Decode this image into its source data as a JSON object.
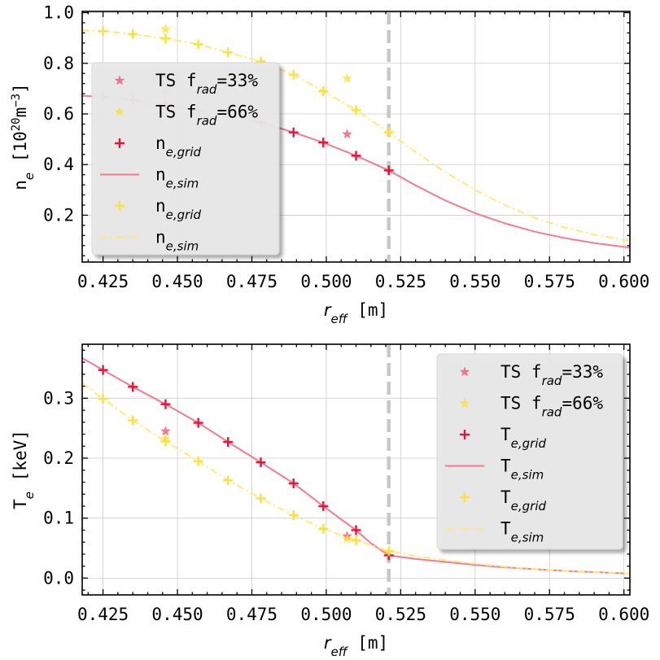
{
  "chart_data": [
    {
      "type": "scatter",
      "xlabel": "r_eff [m]",
      "xlabel_parts": {
        "main": "r",
        "sub": "eff",
        "unit": " [m]"
      },
      "ylabel_parts": {
        "main": "n",
        "sub": "e",
        "unit": " [10",
        "sup": "20",
        "unit2": "m",
        "sup2": "−3",
        "close": "]"
      },
      "xlim": [
        0.418,
        0.602
      ],
      "ylim": [
        0.015,
        1.005
      ],
      "xticks": [
        0.425,
        0.45,
        0.475,
        0.5,
        0.525,
        0.55,
        0.575,
        0.6
      ],
      "xtick_labels": [
        "0.425",
        "0.450",
        "0.475",
        "0.500",
        "0.525",
        "0.550",
        "0.575",
        "0.600"
      ],
      "yticks": [
        0.2,
        0.4,
        0.6,
        0.8,
        1.0
      ],
      "ytick_labels": [
        "0.2",
        "0.4",
        "0.6",
        "0.8",
        "1.0"
      ],
      "grid": true,
      "vline": 0.521,
      "legend_position": "upper-left",
      "series": [
        {
          "kind": "star",
          "color": "#f25a72",
          "alpha": 0.8,
          "x": [
            0.446,
            0.507
          ],
          "y": [
            0.685,
            0.52
          ]
        },
        {
          "kind": "star",
          "color": "#ffe135",
          "alpha": 0.8,
          "x": [
            0.446,
            0.507
          ],
          "y": [
            0.935,
            0.74
          ]
        },
        {
          "kind": "plus",
          "color": "#ee1138",
          "x": [
            0.425,
            0.435,
            0.446,
            0.457,
            0.467,
            0.478,
            0.489,
            0.499,
            0.51,
            0.521
          ],
          "y": [
            0.667,
            0.655,
            0.635,
            0.613,
            0.592,
            0.567,
            0.527,
            0.487,
            0.435,
            0.377
          ]
        },
        {
          "kind": "line",
          "color": "#f87a8c",
          "dash": "solid",
          "x": [
            0.418,
            0.425,
            0.435,
            0.446,
            0.457,
            0.467,
            0.478,
            0.489,
            0.499,
            0.51,
            0.521,
            0.53,
            0.54,
            0.55,
            0.56,
            0.57,
            0.58,
            0.59,
            0.6,
            0.602
          ],
          "y": [
            0.672,
            0.667,
            0.655,
            0.635,
            0.613,
            0.592,
            0.567,
            0.527,
            0.487,
            0.435,
            0.377,
            0.318,
            0.258,
            0.208,
            0.168,
            0.135,
            0.11,
            0.09,
            0.075,
            0.072
          ]
        },
        {
          "kind": "plus",
          "color": "#ffe135",
          "x": [
            0.425,
            0.435,
            0.446,
            0.457,
            0.467,
            0.478,
            0.489,
            0.499,
            0.51,
            0.521
          ],
          "y": [
            0.927,
            0.915,
            0.898,
            0.875,
            0.843,
            0.807,
            0.755,
            0.69,
            0.615,
            0.527
          ]
        },
        {
          "kind": "line",
          "color": "#ffe97a",
          "dash": "dashdot",
          "x": [
            0.418,
            0.425,
            0.435,
            0.446,
            0.457,
            0.467,
            0.478,
            0.489,
            0.499,
            0.51,
            0.521,
            0.53,
            0.54,
            0.55,
            0.56,
            0.57,
            0.58,
            0.59,
            0.6,
            0.602
          ],
          "y": [
            0.93,
            0.927,
            0.915,
            0.898,
            0.875,
            0.843,
            0.807,
            0.755,
            0.69,
            0.615,
            0.527,
            0.45,
            0.37,
            0.3,
            0.24,
            0.19,
            0.152,
            0.123,
            0.103,
            0.1
          ]
        }
      ],
      "legend": [
        {
          "kind": "star",
          "color": "#f25a72",
          "alpha": 0.8,
          "pre": "TS f",
          "sub": "rad",
          "post": "=33%"
        },
        {
          "kind": "star",
          "color": "#ffe135",
          "alpha": 0.8,
          "pre": "TS f",
          "sub": "rad",
          "post": "=66%"
        },
        {
          "kind": "plus",
          "color": "#ee1138",
          "pre": "n",
          "sub": "e,grid",
          "post": ""
        },
        {
          "kind": "line",
          "color": "#f87a8c",
          "dash": "solid",
          "pre": "n",
          "sub": "e,sim",
          "post": ""
        },
        {
          "kind": "plus",
          "color": "#ffe135",
          "pre": "n",
          "sub": "e,grid",
          "post": ""
        },
        {
          "kind": "line",
          "color": "#ffe97a",
          "dash": "dashdot",
          "pre": "n",
          "sub": "e,sim",
          "post": ""
        }
      ]
    },
    {
      "type": "scatter",
      "xlabel": "r_eff [m]",
      "xlabel_parts": {
        "main": "r",
        "sub": "eff",
        "unit": " [m]"
      },
      "ylabel_parts": {
        "main": "T",
        "sub": "e",
        "unit": " [keV]"
      },
      "xlim": [
        0.418,
        0.602
      ],
      "ylim": [
        -0.028,
        0.39
      ],
      "xticks": [
        0.425,
        0.45,
        0.475,
        0.5,
        0.525,
        0.55,
        0.575,
        0.6
      ],
      "xtick_labels": [
        "0.425",
        "0.450",
        "0.475",
        "0.500",
        "0.525",
        "0.550",
        "0.575",
        "0.600"
      ],
      "yticks": [
        0.0,
        0.1,
        0.2,
        0.3
      ],
      "ytick_labels": [
        "0.0",
        "0.1",
        "0.2",
        "0.3"
      ],
      "grid": true,
      "vline": 0.521,
      "legend_position": "upper-right",
      "series": [
        {
          "kind": "star",
          "color": "#f25a72",
          "alpha": 0.8,
          "x": [
            0.446,
            0.507
          ],
          "y": [
            0.245,
            0.07
          ]
        },
        {
          "kind": "star",
          "color": "#ffe135",
          "alpha": 0.8,
          "x": [
            0.446,
            0.507
          ],
          "y": [
            0.232,
            0.065
          ]
        },
        {
          "kind": "plus",
          "color": "#ee1138",
          "x": [
            0.425,
            0.435,
            0.446,
            0.457,
            0.467,
            0.478,
            0.489,
            0.499,
            0.51,
            0.521
          ],
          "y": [
            0.347,
            0.319,
            0.29,
            0.259,
            0.227,
            0.193,
            0.158,
            0.12,
            0.08,
            0.038
          ]
        },
        {
          "kind": "line",
          "color": "#f87a8c",
          "dash": "solid",
          "x": [
            0.418,
            0.425,
            0.435,
            0.446,
            0.457,
            0.467,
            0.478,
            0.489,
            0.499,
            0.505,
            0.51,
            0.515,
            0.521,
            0.53,
            0.54,
            0.55,
            0.56,
            0.57,
            0.58,
            0.59,
            0.6,
            0.602
          ],
          "y": [
            0.367,
            0.347,
            0.319,
            0.29,
            0.259,
            0.227,
            0.193,
            0.158,
            0.12,
            0.098,
            0.08,
            0.058,
            0.038,
            0.032,
            0.027,
            0.022,
            0.018,
            0.015,
            0.012,
            0.01,
            0.008,
            0.008
          ]
        },
        {
          "kind": "plus",
          "color": "#ffe135",
          "x": [
            0.425,
            0.435,
            0.446,
            0.457,
            0.467,
            0.478,
            0.489,
            0.499,
            0.51,
            0.521
          ],
          "y": [
            0.299,
            0.263,
            0.228,
            0.195,
            0.163,
            0.133,
            0.105,
            0.082,
            0.063,
            0.045
          ]
        },
        {
          "kind": "line",
          "color": "#ffe97a",
          "dash": "dashdot",
          "x": [
            0.418,
            0.425,
            0.435,
            0.446,
            0.457,
            0.467,
            0.478,
            0.489,
            0.499,
            0.51,
            0.521,
            0.53,
            0.54,
            0.55,
            0.56,
            0.57,
            0.58,
            0.59,
            0.6,
            0.602
          ],
          "y": [
            0.325,
            0.299,
            0.263,
            0.228,
            0.195,
            0.163,
            0.133,
            0.105,
            0.082,
            0.063,
            0.045,
            0.037,
            0.03,
            0.024,
            0.019,
            0.015,
            0.012,
            0.01,
            0.008,
            0.008
          ]
        }
      ],
      "legend": [
        {
          "kind": "star",
          "color": "#f25a72",
          "alpha": 0.8,
          "pre": "TS f",
          "sub": "rad",
          "post": "=33%"
        },
        {
          "kind": "star",
          "color": "#ffe135",
          "alpha": 0.8,
          "pre": "TS f",
          "sub": "rad",
          "post": "=66%"
        },
        {
          "kind": "plus",
          "color": "#ee1138",
          "pre": "T",
          "sub": "e,grid",
          "post": ""
        },
        {
          "kind": "line",
          "color": "#f87a8c",
          "dash": "solid",
          "pre": "T",
          "sub": "e,sim",
          "post": ""
        },
        {
          "kind": "plus",
          "color": "#ffe135",
          "pre": "T",
          "sub": "e,grid",
          "post": ""
        },
        {
          "kind": "line",
          "color": "#ffe97a",
          "dash": "dashdot",
          "pre": "T",
          "sub": "e,sim",
          "post": ""
        }
      ]
    }
  ]
}
